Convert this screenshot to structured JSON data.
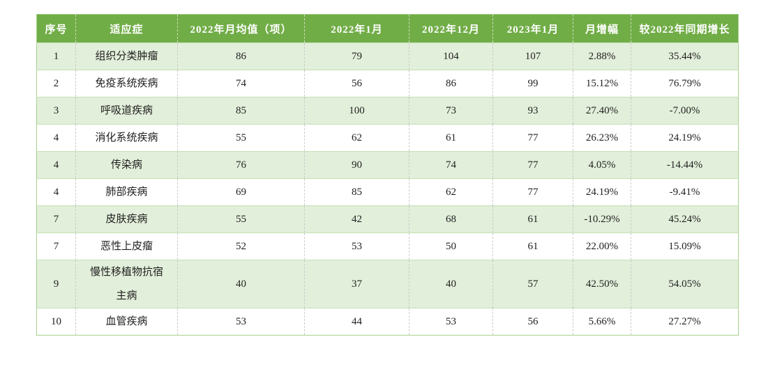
{
  "chart_data": {
    "type": "table",
    "title": "",
    "columns": [
      "序号",
      "适应症",
      "2022年月均值（项）",
      "2022年1月",
      "2022年12月",
      "2023年1月",
      "月增幅",
      "较2022年同期增长"
    ],
    "rows": [
      [
        "1",
        "组织分类肿瘤",
        "86",
        "79",
        "104",
        "107",
        "2.88%",
        "35.44%"
      ],
      [
        "2",
        "免疫系统疾病",
        "74",
        "56",
        "86",
        "99",
        "15.12%",
        "76.79%"
      ],
      [
        "3",
        "呼吸道疾病",
        "85",
        "100",
        "73",
        "93",
        "27.40%",
        "-7.00%"
      ],
      [
        "4",
        "消化系统疾病",
        "55",
        "62",
        "61",
        "77",
        "26.23%",
        "24.19%"
      ],
      [
        "4",
        "传染病",
        "76",
        "90",
        "74",
        "77",
        "4.05%",
        "-14.44%"
      ],
      [
        "4",
        "肺部疾病",
        "69",
        "85",
        "62",
        "77",
        "24.19%",
        "-9.41%"
      ],
      [
        "7",
        "皮肤疾病",
        "55",
        "42",
        "68",
        "61",
        "-10.29%",
        "45.24%"
      ],
      [
        "7",
        "恶性上皮瘤",
        "52",
        "53",
        "50",
        "61",
        "22.00%",
        "15.09%"
      ],
      [
        "9",
        "慢性移植物抗宿主病",
        "40",
        "37",
        "40",
        "57",
        "42.50%",
        "54.05%"
      ],
      [
        "10",
        "血管疾病",
        "53",
        "44",
        "53",
        "56",
        "5.66%",
        "27.27%"
      ]
    ],
    "layout_hints": {
      "striping": "odd data rows light green, even rows white",
      "header_style": "solid green with white bold text",
      "grid": "dashed vertical dividers, solid light-green horizontal dividers"
    }
  },
  "colors": {
    "header_bg": "#71ad47",
    "header_text": "#ffffff",
    "row_alt_bg": "#e2efda",
    "row_bg": "#ffffff",
    "outer_border": "#a9d18e",
    "row_divider": "#c5e0b4",
    "col_divider": "#cccccc",
    "text": "#1f1f1f"
  }
}
